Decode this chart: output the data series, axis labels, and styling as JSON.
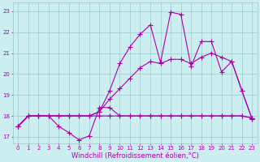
{
  "background_color": "#cceef0",
  "grid_color": "#99cccc",
  "line_color": "#aa00aa",
  "marker_color": "#aa00aa",
  "xlabel": "Windchill (Refroidissement éolien,°C)",
  "xlim": [
    -0.5,
    23.5
  ],
  "ylim": [
    16.7,
    23.4
  ],
  "xticks": [
    0,
    1,
    2,
    3,
    4,
    5,
    6,
    7,
    8,
    9,
    10,
    11,
    12,
    13,
    14,
    15,
    16,
    17,
    18,
    19,
    20,
    21,
    22,
    23
  ],
  "yticks": [
    17,
    18,
    19,
    20,
    21,
    22,
    23
  ],
  "lines": [
    {
      "x": [
        0,
        1,
        2,
        3,
        4,
        5,
        6,
        7,
        8,
        9,
        10,
        11,
        12,
        13,
        14,
        15,
        16,
        17,
        18,
        19,
        20,
        21,
        22,
        23
      ],
      "y": [
        17.5,
        18.0,
        18.0,
        18.0,
        18.0,
        18.0,
        18.0,
        18.0,
        18.0,
        18.0,
        18.0,
        18.0,
        18.0,
        18.0,
        18.0,
        18.0,
        18.0,
        18.0,
        18.0,
        18.0,
        18.0,
        18.0,
        18.0,
        17.9
      ],
      "marker": "+",
      "markersize": 4.0,
      "linewidth": 0.8
    },
    {
      "x": [
        0,
        1,
        2,
        3,
        4,
        5,
        6,
        7,
        8,
        9,
        10,
        11,
        12,
        13,
        14,
        15,
        16,
        17,
        18,
        19,
        20,
        21,
        22,
        23
      ],
      "y": [
        17.5,
        18.0,
        18.0,
        18.0,
        17.5,
        17.2,
        16.85,
        17.05,
        18.4,
        18.4,
        18.0,
        18.0,
        18.0,
        18.0,
        18.0,
        18.0,
        18.0,
        18.0,
        18.0,
        18.0,
        18.0,
        18.0,
        18.0,
        17.9
      ],
      "marker": "+",
      "markersize": 4.0,
      "linewidth": 0.8
    },
    {
      "x": [
        0,
        1,
        2,
        3,
        4,
        5,
        6,
        7,
        8,
        9,
        10,
        11,
        12,
        13,
        14,
        15,
        16,
        17,
        18,
        19,
        20,
        21,
        22,
        23
      ],
      "y": [
        17.5,
        18.0,
        18.0,
        18.0,
        18.0,
        18.0,
        18.0,
        18.0,
        18.2,
        18.8,
        19.3,
        19.8,
        20.3,
        20.6,
        20.5,
        20.7,
        20.7,
        20.5,
        20.8,
        21.0,
        20.8,
        20.6,
        19.2,
        17.85
      ],
      "marker": "+",
      "markersize": 4.0,
      "linewidth": 0.8
    },
    {
      "x": [
        0,
        1,
        2,
        3,
        4,
        5,
        6,
        7,
        8,
        9,
        10,
        11,
        12,
        13,
        14,
        15,
        16,
        17,
        18,
        19,
        20,
        21,
        22,
        23
      ],
      "y": [
        17.5,
        18.0,
        18.0,
        18.0,
        18.0,
        18.0,
        18.0,
        18.0,
        18.2,
        19.2,
        20.5,
        21.3,
        21.9,
        22.35,
        20.55,
        22.95,
        22.85,
        20.35,
        21.55,
        21.55,
        20.1,
        20.6,
        19.2,
        17.85
      ],
      "marker": "+",
      "markersize": 4.0,
      "linewidth": 0.8
    }
  ],
  "tick_fontsize": 5.0,
  "label_fontsize": 6.0
}
